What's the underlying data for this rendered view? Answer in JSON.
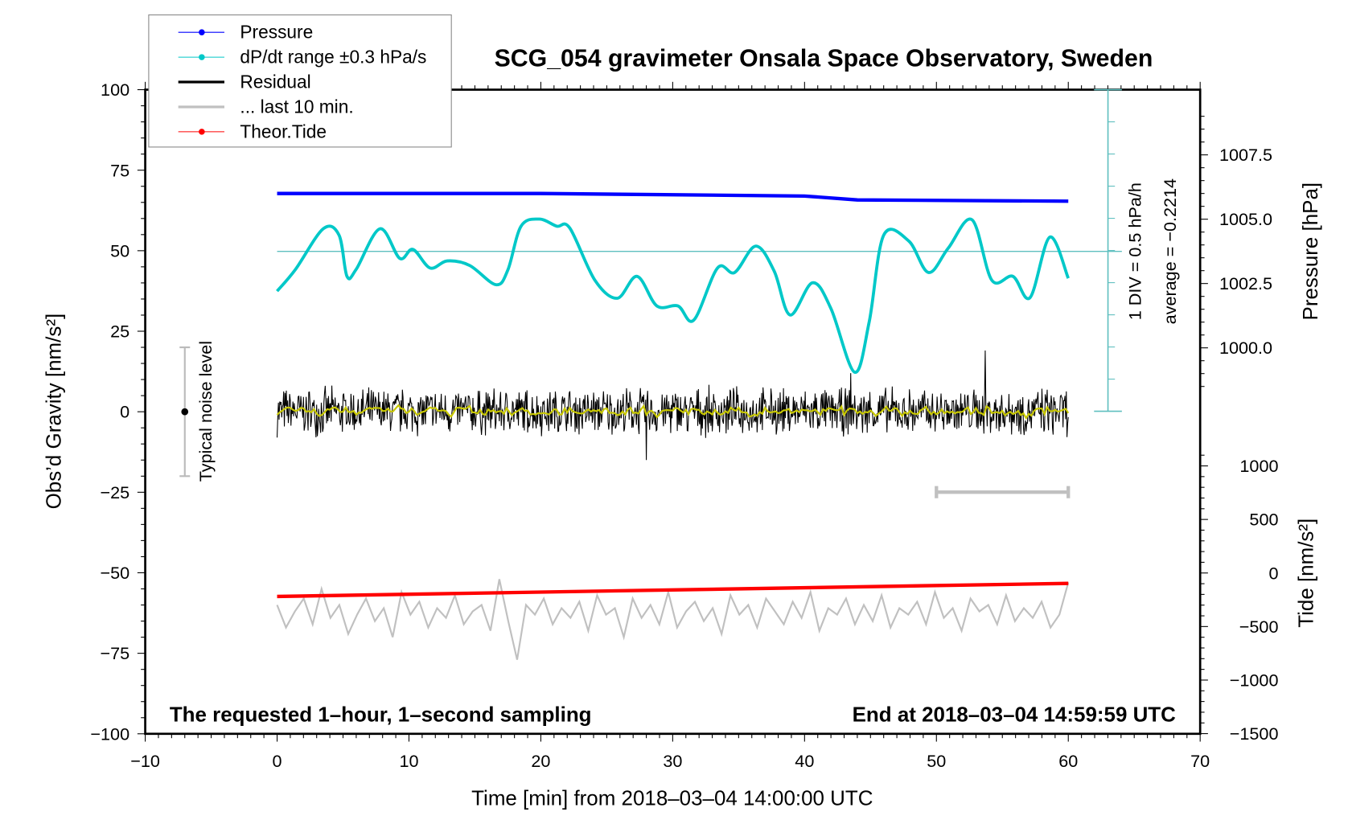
{
  "chart_data": {
    "type": "line",
    "title": "SCG_054 gravimeter Onsala Space Observatory, Sweden",
    "xlabel": "Time [min] from 2018–03–04 14:00:00 UTC",
    "ylabel_left": "Obs’d Gravity [nm/s²]",
    "ylabel_right_top": "Pressure [hPa]",
    "ylabel_right_bottom": "Tide [nm/s²]",
    "xlim": [
      -10,
      70
    ],
    "ylim_left": [
      -100,
      100
    ],
    "x_ticks": [
      "−10",
      "0",
      "10",
      "20",
      "30",
      "40",
      "50",
      "60",
      "70"
    ],
    "y_left_ticks": [
      "100",
      "75",
      "50",
      "25",
      "0",
      "−25",
      "−50",
      "−75",
      "−100"
    ],
    "pressure_ticks": [
      "1007.5",
      "1005.0",
      "1002.5",
      "1000.0"
    ],
    "tide_ticks": [
      "1000",
      "500",
      "0",
      "−500",
      "−1000",
      "−1500"
    ],
    "grid": false,
    "legend_position": "top-left",
    "legend": [
      {
        "label": "Pressure",
        "color": "#0000ff"
      },
      {
        "label": "dP/dt range ±0.3 hPa/s",
        "color": "#00c8c8"
      },
      {
        "label": "Residual",
        "color": "#000000"
      },
      {
        "label": "... last 10 min.",
        "color": "#c0c0c0"
      },
      {
        "label": "Theor.Tide",
        "color": "#ff0000"
      }
    ],
    "annotations": {
      "dpdt_scale": "1 DIV = 0.5 hPa/h",
      "dpdt_average": "average = −0.2214",
      "noise_label": "Typical noise level",
      "bottom_left": "The requested 1–hour, 1–second sampling",
      "bottom_right": "End at 2018–03–04 14:59:59 UTC"
    },
    "noise_level": {
      "x": -7,
      "range": [
        -20,
        20
      ]
    },
    "last10_window": [
      50,
      60
    ],
    "pressure_hPa": {
      "x": [
        0,
        20,
        40,
        44,
        60
      ],
      "y": [
        1006.0,
        1006.0,
        1005.9,
        1005.75,
        1005.7
      ]
    },
    "dpdt_hPa_per_h": {
      "x": [
        0,
        1.4,
        3.5,
        4.7,
        5.3,
        6.0,
        7.8,
        9.3,
        10.3,
        11.6,
        12.9,
        14.6,
        16.6,
        17.5,
        18.5,
        19.9,
        21.2,
        22.2,
        24.1,
        25.8,
        27.3,
        28.8,
        30.4,
        31.6,
        33.4,
        34.7,
        36.3,
        37.7,
        38.9,
        40.6,
        42.0,
        43.8,
        44.9,
        46.0,
        47.9,
        49.4,
        50.9,
        52.7,
        54.2,
        55.8,
        57.1,
        58.6,
        60
      ],
      "y": [
        -0.84,
        -0.5,
        0.13,
        0.03,
        -0.61,
        -0.5,
        0.13,
        -0.33,
        -0.19,
        -0.48,
        -0.37,
        -0.44,
        -0.74,
        -0.51,
        0.17,
        0.28,
        0.17,
        0.14,
        -0.67,
        -0.95,
        -0.61,
        -1.07,
        -1.07,
        -1.29,
        -0.48,
        -0.55,
        -0.14,
        -0.53,
        -1.21,
        -0.71,
        -1.11,
        -2.1,
        -1.32,
        0.03,
        -0.06,
        -0.55,
        -0.17,
        0.27,
        -0.67,
        -0.61,
        -0.94,
        0.0,
        -0.64
      ]
    },
    "residual_nm_s2": {
      "x_range": [
        0,
        60
      ],
      "amplitude": 6,
      "spikes": [
        {
          "x": 28.0,
          "y": -15
        },
        {
          "x": 43.5,
          "y": 12
        },
        {
          "x": 53.7,
          "y": 19
        }
      ]
    },
    "theor_tide_nm_s2": {
      "x": [
        0,
        60
      ],
      "y": [
        -219,
        -97
      ]
    },
    "last10_residual_nm_s2": [
      -60,
      -67,
      -62,
      -58,
      -66,
      -55,
      -64,
      -60,
      -69,
      -63,
      -58,
      -65,
      -61,
      -70,
      -56,
      -63,
      -59,
      -67,
      -61,
      -64,
      -57,
      -66,
      -62,
      -60,
      -68,
      -52,
      -65,
      -77,
      -60,
      -63,
      -58,
      -66,
      -61,
      -64,
      -59,
      -68,
      -57,
      -63,
      -61,
      -70,
      -58,
      -64,
      -60,
      -66,
      -56,
      -67,
      -62,
      -59,
      -65,
      -61,
      -69,
      -57,
      -63,
      -60,
      -67,
      -58,
      -62,
      -66,
      -59,
      -64,
      -56,
      -68,
      -61,
      -63,
      -58,
      -66,
      -60,
      -65,
      -57,
      -67,
      -61,
      -63,
      -59,
      -66,
      -56,
      -64,
      -61,
      -68,
      -58,
      -62,
      -60,
      -66,
      -57,
      -65,
      -61,
      -64,
      -59,
      -67,
      -63,
      -53
    ]
  }
}
